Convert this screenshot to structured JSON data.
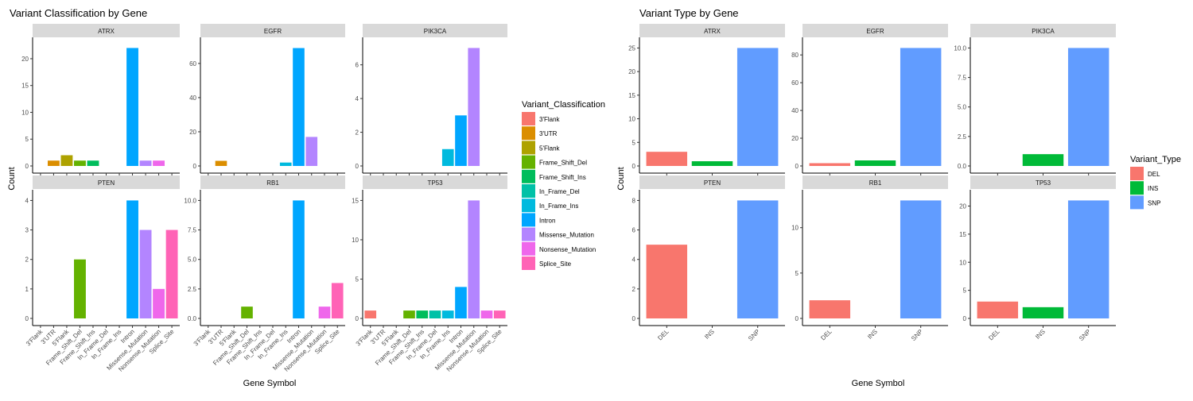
{
  "chart_data": [
    {
      "type": "bar",
      "title": "Variant Classification by Gene",
      "xlabel": "Gene Symbol",
      "ylabel": "Count",
      "legend_title": "Variant_Classification",
      "legend_position": "right",
      "categories": [
        "3'Flank",
        "3'UTR",
        "5'Flank",
        "Frame_Shift_Del",
        "Frame_Shift_Ins",
        "In_Frame_Del",
        "In_Frame_Ins",
        "Intron",
        "Missense_Mutation",
        "Nonsense_Mutation",
        "Splice_Site"
      ],
      "colors": [
        "#F8766D",
        "#DB8E00",
        "#AEA200",
        "#64B200",
        "#00BD5C",
        "#00C1A7",
        "#00BADE",
        "#00A6FF",
        "#B385FF",
        "#EF67EB",
        "#FF63B6"
      ],
      "panels": [
        {
          "name": "ATRX",
          "ylim": [
            0,
            23.1
          ],
          "ticks": [
            0,
            5,
            10,
            15,
            20
          ],
          "tick_labels": [
            "0",
            "5",
            "10",
            "15",
            "20"
          ],
          "values": [
            0,
            1,
            2,
            1,
            1,
            0,
            0,
            22,
            1,
            1,
            0
          ]
        },
        {
          "name": "EGFR",
          "ylim": [
            0,
            72.5
          ],
          "ticks": [
            0,
            20,
            40,
            60
          ],
          "tick_labels": [
            "0",
            "20",
            "40",
            "60"
          ],
          "values": [
            0,
            3,
            0,
            0,
            0,
            0,
            2,
            69,
            17,
            0,
            0
          ]
        },
        {
          "name": "PIK3CA",
          "ylim": [
            0,
            7.35
          ],
          "ticks": [
            0,
            2,
            4,
            6
          ],
          "tick_labels": [
            "0",
            "2",
            "4",
            "6"
          ],
          "values": [
            0,
            0,
            0,
            0,
            0,
            0,
            1,
            3,
            7,
            0,
            0
          ]
        },
        {
          "name": "PTEN",
          "ylim": [
            0,
            4.2
          ],
          "ticks": [
            0,
            1,
            2,
            3,
            4
          ],
          "tick_labels": [
            "0",
            "1",
            "2",
            "3",
            "4"
          ],
          "values": [
            0,
            0,
            0,
            2,
            0,
            0,
            0,
            4,
            3,
            1,
            3
          ]
        },
        {
          "name": "RB1",
          "ylim": [
            0,
            10.5
          ],
          "ticks": [
            0,
            2.5,
            5,
            7.5,
            10
          ],
          "tick_labels": [
            "0.0",
            "2.5",
            "5.0",
            "7.5",
            "10.0"
          ],
          "values": [
            0,
            0,
            0,
            1,
            0,
            0,
            0,
            10,
            0,
            1,
            3
          ]
        },
        {
          "name": "TP53",
          "ylim": [
            0,
            15.75
          ],
          "ticks": [
            0,
            5,
            10,
            15
          ],
          "tick_labels": [
            "0",
            "5",
            "10",
            "15"
          ],
          "values": [
            1,
            0,
            0,
            1,
            1,
            1,
            1,
            4,
            15,
            1,
            1
          ]
        }
      ]
    },
    {
      "type": "bar",
      "title": "Variant Type by Gene",
      "xlabel": "Gene Symbol",
      "ylabel": "Count",
      "legend_title": "Variant_Type",
      "legend_position": "right",
      "categories": [
        "DEL",
        "INS",
        "SNP"
      ],
      "colors": [
        "#F8766D",
        "#00BA38",
        "#619CFF"
      ],
      "panels": [
        {
          "name": "ATRX",
          "ylim": [
            0,
            26.25
          ],
          "ticks": [
            0,
            5,
            10,
            15,
            20,
            25
          ],
          "tick_labels": [
            "0",
            "5",
            "10",
            "15",
            "20",
            "25"
          ],
          "values": [
            3,
            1,
            25
          ]
        },
        {
          "name": "EGFR",
          "ylim": [
            0,
            89.25
          ],
          "ticks": [
            0,
            20,
            40,
            60,
            80
          ],
          "tick_labels": [
            "0",
            "20",
            "40",
            "60",
            "80"
          ],
          "values": [
            2,
            4,
            85
          ]
        },
        {
          "name": "PIK3CA",
          "ylim": [
            0,
            10.5
          ],
          "ticks": [
            0,
            2.5,
            5,
            7.5,
            10
          ],
          "tick_labels": [
            "0.0",
            "2.5",
            "5.0",
            "7.5",
            "10.0"
          ],
          "values": [
            0,
            1,
            10
          ]
        },
        {
          "name": "PTEN",
          "ylim": [
            0,
            8.4
          ],
          "ticks": [
            0,
            2,
            4,
            6,
            8
          ],
          "tick_labels": [
            "0",
            "2",
            "4",
            "6",
            "8"
          ],
          "values": [
            5,
            0,
            8
          ]
        },
        {
          "name": "RB1",
          "ylim": [
            0,
            13.65
          ],
          "ticks": [
            0,
            5,
            10
          ],
          "tick_labels": [
            "0",
            "5",
            "10"
          ],
          "values": [
            2,
            0,
            13
          ]
        },
        {
          "name": "TP53",
          "ylim": [
            0,
            22.05
          ],
          "ticks": [
            0,
            5,
            10,
            15,
            20
          ],
          "tick_labels": [
            "0",
            "5",
            "10",
            "15",
            "20"
          ],
          "values": [
            3,
            2,
            21
          ]
        }
      ]
    }
  ]
}
